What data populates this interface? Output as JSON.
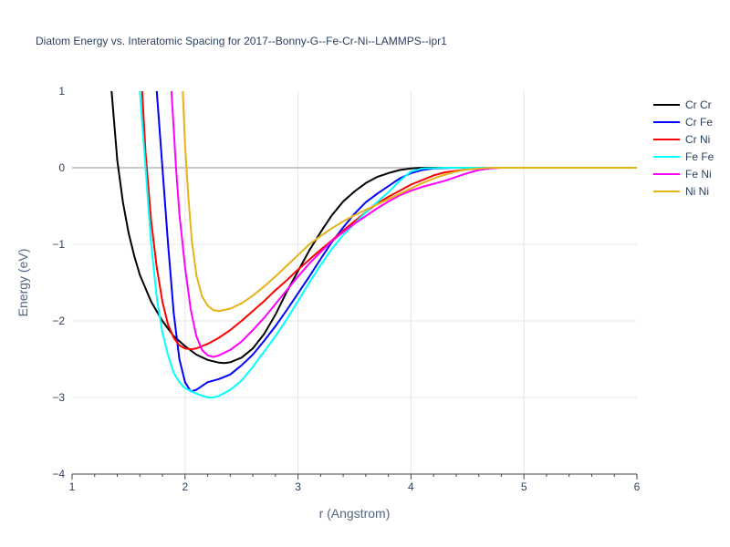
{
  "chart_data": {
    "type": "line",
    "title": "Diatom Energy vs. Interatomic Spacing for 2017--Bonny-G--Fe-Cr-Ni--LAMMPS--ipr1",
    "xlabel": "r (Angstrom)",
    "ylabel": "Energy (eV)",
    "xlim": [
      1,
      6
    ],
    "ylim": [
      -4,
      1
    ],
    "xticks": [
      "1",
      "2",
      "3",
      "4",
      "5",
      "6"
    ],
    "yticks": [
      "1",
      "0",
      "−1",
      "−2",
      "−3",
      "−4"
    ],
    "grid": true,
    "legend_position": "top-right",
    "series": [
      {
        "name": "Cr Cr",
        "color": "#000000",
        "points": [
          [
            1.3,
            2.0
          ],
          [
            1.35,
            1.0
          ],
          [
            1.4,
            0.1
          ],
          [
            1.45,
            -0.45
          ],
          [
            1.5,
            -0.85
          ],
          [
            1.55,
            -1.15
          ],
          [
            1.6,
            -1.4
          ],
          [
            1.7,
            -1.75
          ],
          [
            1.8,
            -2.0
          ],
          [
            1.9,
            -2.2
          ],
          [
            2.0,
            -2.33
          ],
          [
            2.1,
            -2.44
          ],
          [
            2.2,
            -2.51
          ],
          [
            2.3,
            -2.545
          ],
          [
            2.35,
            -2.55
          ],
          [
            2.4,
            -2.54
          ],
          [
            2.5,
            -2.48
          ],
          [
            2.6,
            -2.36
          ],
          [
            2.7,
            -2.17
          ],
          [
            2.8,
            -1.92
          ],
          [
            2.9,
            -1.62
          ],
          [
            3.0,
            -1.35
          ],
          [
            3.1,
            -1.08
          ],
          [
            3.2,
            -0.84
          ],
          [
            3.3,
            -0.62
          ],
          [
            3.4,
            -0.44
          ],
          [
            3.5,
            -0.31
          ],
          [
            3.6,
            -0.2
          ],
          [
            3.7,
            -0.12
          ],
          [
            3.8,
            -0.07
          ],
          [
            3.9,
            -0.03
          ],
          [
            4.0,
            -0.01
          ],
          [
            4.1,
            0
          ],
          [
            6.0,
            0
          ]
        ]
      },
      {
        "name": "Cr Fe",
        "color": "#0000ff",
        "points": [
          [
            1.75,
            1.0
          ],
          [
            1.8,
            0.0
          ],
          [
            1.85,
            -1.0
          ],
          [
            1.9,
            -1.9
          ],
          [
            1.95,
            -2.5
          ],
          [
            2.0,
            -2.8
          ],
          [
            2.05,
            -2.92
          ],
          [
            2.1,
            -2.9
          ],
          [
            2.2,
            -2.8
          ],
          [
            2.3,
            -2.76
          ],
          [
            2.4,
            -2.7
          ],
          [
            2.5,
            -2.58
          ],
          [
            2.6,
            -2.44
          ],
          [
            2.7,
            -2.26
          ],
          [
            2.8,
            -2.07
          ],
          [
            2.9,
            -1.86
          ],
          [
            3.0,
            -1.64
          ],
          [
            3.1,
            -1.42
          ],
          [
            3.2,
            -1.19
          ],
          [
            3.3,
            -0.97
          ],
          [
            3.4,
            -0.78
          ],
          [
            3.5,
            -0.6
          ],
          [
            3.6,
            -0.45
          ],
          [
            3.7,
            -0.34
          ],
          [
            3.8,
            -0.24
          ],
          [
            3.9,
            -0.14
          ],
          [
            4.0,
            -0.07
          ],
          [
            4.1,
            -0.03
          ],
          [
            4.2,
            -0.01
          ],
          [
            4.4,
            0
          ],
          [
            6.0,
            0
          ]
        ]
      },
      {
        "name": "Cr Ni",
        "color": "#ff0000",
        "points": [
          [
            1.62,
            1.0
          ],
          [
            1.65,
            0.2
          ],
          [
            1.7,
            -0.7
          ],
          [
            1.75,
            -1.3
          ],
          [
            1.8,
            -1.75
          ],
          [
            1.85,
            -2.05
          ],
          [
            1.9,
            -2.22
          ],
          [
            1.95,
            -2.32
          ],
          [
            2.0,
            -2.36
          ],
          [
            2.05,
            -2.37
          ],
          [
            2.1,
            -2.36
          ],
          [
            2.2,
            -2.3
          ],
          [
            2.3,
            -2.22
          ],
          [
            2.4,
            -2.12
          ],
          [
            2.5,
            -2.0
          ],
          [
            2.6,
            -1.87
          ],
          [
            2.7,
            -1.74
          ],
          [
            2.8,
            -1.6
          ],
          [
            2.9,
            -1.47
          ],
          [
            3.0,
            -1.33
          ],
          [
            3.1,
            -1.2
          ],
          [
            3.2,
            -1.07
          ],
          [
            3.3,
            -0.95
          ],
          [
            3.4,
            -0.82
          ],
          [
            3.5,
            -0.7
          ],
          [
            3.6,
            -0.58
          ],
          [
            3.7,
            -0.47
          ],
          [
            3.8,
            -0.38
          ],
          [
            3.9,
            -0.3
          ],
          [
            4.0,
            -0.22
          ],
          [
            4.1,
            -0.16
          ],
          [
            4.2,
            -0.1
          ],
          [
            4.3,
            -0.06
          ],
          [
            4.4,
            -0.04
          ],
          [
            4.5,
            -0.02
          ],
          [
            4.7,
            0
          ],
          [
            6.0,
            0
          ]
        ]
      },
      {
        "name": "Fe Fe",
        "color": "#00ffff",
        "points": [
          [
            1.6,
            1.0
          ],
          [
            1.65,
            0.0
          ],
          [
            1.7,
            -1.0
          ],
          [
            1.75,
            -1.7
          ],
          [
            1.8,
            -2.15
          ],
          [
            1.85,
            -2.45
          ],
          [
            1.9,
            -2.68
          ],
          [
            1.95,
            -2.8
          ],
          [
            2.0,
            -2.88
          ],
          [
            2.1,
            -2.95
          ],
          [
            2.2,
            -3.0
          ],
          [
            2.25,
            -3.0
          ],
          [
            2.3,
            -2.98
          ],
          [
            2.4,
            -2.9
          ],
          [
            2.5,
            -2.78
          ],
          [
            2.6,
            -2.6
          ],
          [
            2.7,
            -2.4
          ],
          [
            2.8,
            -2.2
          ],
          [
            2.9,
            -1.98
          ],
          [
            3.0,
            -1.74
          ],
          [
            3.1,
            -1.5
          ],
          [
            3.2,
            -1.27
          ],
          [
            3.3,
            -1.06
          ],
          [
            3.4,
            -0.88
          ],
          [
            3.5,
            -0.73
          ],
          [
            3.6,
            -0.58
          ],
          [
            3.7,
            -0.45
          ],
          [
            3.8,
            -0.32
          ],
          [
            3.9,
            -0.17
          ],
          [
            4.0,
            -0.05
          ],
          [
            4.1,
            -0.01
          ],
          [
            4.3,
            0
          ],
          [
            6.0,
            0
          ]
        ]
      },
      {
        "name": "Fe Ni",
        "color": "#ff00ff",
        "points": [
          [
            1.88,
            1.0
          ],
          [
            1.92,
            0.0
          ],
          [
            1.95,
            -0.6
          ],
          [
            2.0,
            -1.3
          ],
          [
            2.05,
            -1.85
          ],
          [
            2.1,
            -2.2
          ],
          [
            2.15,
            -2.38
          ],
          [
            2.2,
            -2.45
          ],
          [
            2.25,
            -2.47
          ],
          [
            2.3,
            -2.45
          ],
          [
            2.4,
            -2.38
          ],
          [
            2.5,
            -2.27
          ],
          [
            2.6,
            -2.12
          ],
          [
            2.7,
            -1.96
          ],
          [
            2.8,
            -1.78
          ],
          [
            2.9,
            -1.6
          ],
          [
            3.0,
            -1.42
          ],
          [
            3.1,
            -1.25
          ],
          [
            3.2,
            -1.1
          ],
          [
            3.3,
            -0.96
          ],
          [
            3.4,
            -0.84
          ],
          [
            3.5,
            -0.73
          ],
          [
            3.6,
            -0.63
          ],
          [
            3.7,
            -0.53
          ],
          [
            3.8,
            -0.44
          ],
          [
            3.9,
            -0.36
          ],
          [
            4.0,
            -0.3
          ],
          [
            4.1,
            -0.25
          ],
          [
            4.2,
            -0.21
          ],
          [
            4.3,
            -0.17
          ],
          [
            4.4,
            -0.12
          ],
          [
            4.5,
            -0.07
          ],
          [
            4.6,
            -0.03
          ],
          [
            4.7,
            -0.01
          ],
          [
            4.8,
            0
          ],
          [
            6.0,
            0
          ]
        ]
      },
      {
        "name": "Ni Ni",
        "color": "#e6b21a",
        "points": [
          [
            1.98,
            1.0
          ],
          [
            2.0,
            0.3
          ],
          [
            2.03,
            -0.4
          ],
          [
            2.06,
            -0.95
          ],
          [
            2.1,
            -1.4
          ],
          [
            2.15,
            -1.68
          ],
          [
            2.2,
            -1.8
          ],
          [
            2.25,
            -1.86
          ],
          [
            2.3,
            -1.87
          ],
          [
            2.4,
            -1.84
          ],
          [
            2.5,
            -1.77
          ],
          [
            2.6,
            -1.67
          ],
          [
            2.7,
            -1.55
          ],
          [
            2.8,
            -1.42
          ],
          [
            2.9,
            -1.28
          ],
          [
            3.0,
            -1.14
          ],
          [
            3.1,
            -1.0
          ],
          [
            3.2,
            -0.89
          ],
          [
            3.3,
            -0.79
          ],
          [
            3.4,
            -0.7
          ],
          [
            3.5,
            -0.62
          ],
          [
            3.6,
            -0.55
          ],
          [
            3.7,
            -0.48
          ],
          [
            3.8,
            -0.41
          ],
          [
            3.9,
            -0.34
          ],
          [
            4.0,
            -0.27
          ],
          [
            4.1,
            -0.2
          ],
          [
            4.2,
            -0.14
          ],
          [
            4.3,
            -0.09
          ],
          [
            4.4,
            -0.05
          ],
          [
            4.5,
            -0.02
          ],
          [
            4.7,
            0
          ],
          [
            6.0,
            0
          ]
        ]
      }
    ]
  }
}
